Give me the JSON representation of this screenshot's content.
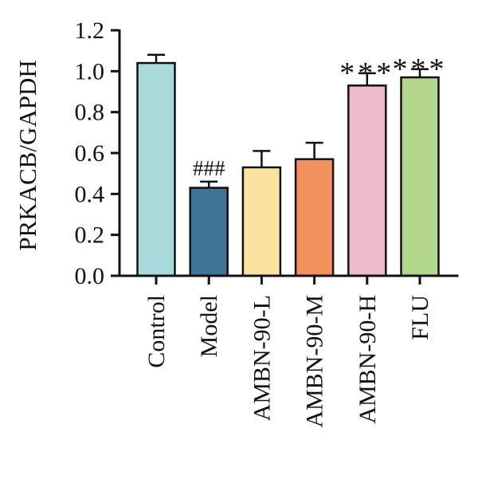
{
  "chart_data": {
    "type": "bar",
    "title": "",
    "xlabel": "",
    "ylabel": "PRKACB/GAPDH",
    "ylim": [
      0,
      1.2
    ],
    "yticks": [
      "0.0",
      "0.2",
      "0.4",
      "0.6",
      "0.8",
      "1.0",
      "1.2"
    ],
    "grid": false,
    "legend": "none",
    "categories": [
      "Control",
      "Model",
      "AMBN-90-L",
      "AMBN-90-M",
      "AMBN-90-H",
      "FLU"
    ],
    "values": [
      1.04,
      0.43,
      0.53,
      0.57,
      0.93,
      0.97
    ],
    "errors": [
      0.04,
      0.03,
      0.08,
      0.08,
      0.06,
      0.04
    ],
    "annotations": [
      "",
      "###",
      "",
      "",
      "***",
      "***"
    ],
    "colors": [
      "#a9dadc",
      "#3e7497",
      "#fbe29e",
      "#f2915c",
      "#efbacb",
      "#b2d78c"
    ]
  }
}
